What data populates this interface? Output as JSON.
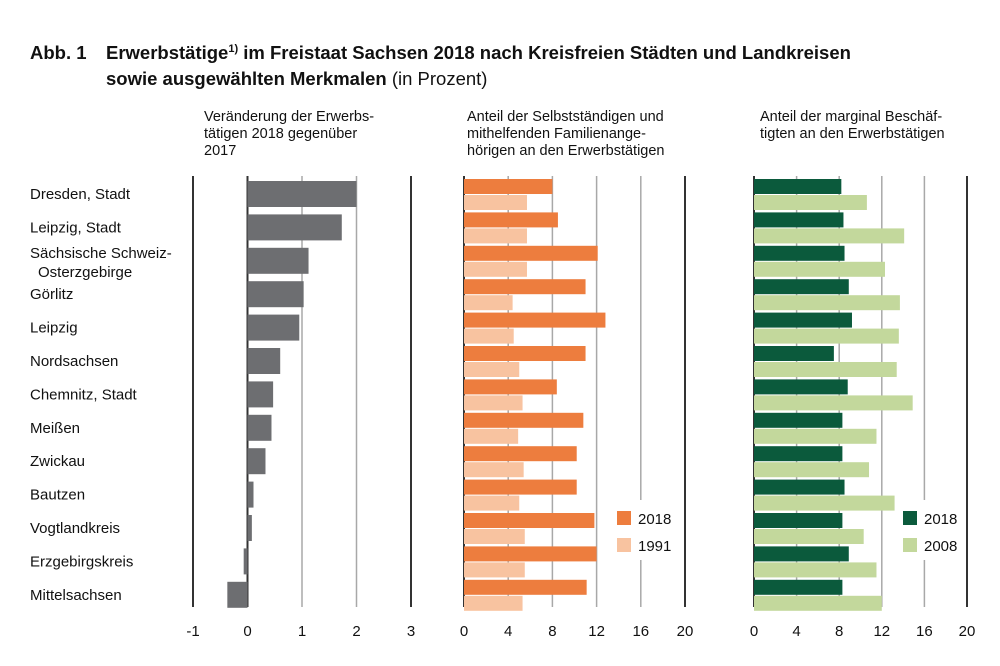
{
  "title": {
    "number": "Abb. 1",
    "main": "Erwerbstätige",
    "footnote_mark": "1)",
    "rest_line1": " im Freistaat Sachsen 2018 nach Kreisfreien Städten und Landkreisen",
    "line2_bold": "sowie ausgewählten Merkmalen",
    "line2_normal": " (in Prozent)"
  },
  "chart_data": [
    {
      "type": "bar",
      "orientation": "horizontal",
      "title_lines": [
        "Veränderung der Erwerbs-",
        "tätigen 2018 gegenüber",
        "2017"
      ],
      "categories": [
        "Dresden, Stadt",
        "Leipzig, Stadt",
        "Sächsische Schweiz-Osterzgebirge",
        "Görlitz",
        "Leipzig",
        "Nordsachsen",
        "Chemnitz, Stadt",
        "Meißen",
        "Zwickau",
        "Bautzen",
        "Vogtlandkreis",
        "Erzgebirgskreis",
        "Mittelsachsen"
      ],
      "series": [
        {
          "values": [
            2.0,
            1.73,
            1.12,
            1.03,
            0.95,
            0.6,
            0.47,
            0.44,
            0.33,
            0.11,
            0.08,
            -0.07,
            -0.37
          ],
          "color": "#6d6e71"
        }
      ],
      "xlim": [
        -1,
        3
      ],
      "ticks": [
        "-1",
        "0",
        "1",
        "2",
        "3"
      ],
      "grid": true
    },
    {
      "type": "bar",
      "orientation": "horizontal",
      "title_lines": [
        "Anteil der Selbstständigen und",
        "mithelfenden Familienange-",
        "hörigen an den Erwerbstätigen"
      ],
      "categories": [
        "Dresden, Stadt",
        "Leipzig, Stadt",
        "Sächsische Schweiz-Osterzgebirge",
        "Görlitz",
        "Leipzig",
        "Nordsachsen",
        "Chemnitz, Stadt",
        "Meißen",
        "Zwickau",
        "Bautzen",
        "Vogtlandkreis",
        "Erzgebirgskreis",
        "Mittelsachsen"
      ],
      "series": [
        {
          "name": "2018",
          "values": [
            8.0,
            8.5,
            12.1,
            11.0,
            12.8,
            11.0,
            8.4,
            10.8,
            10.2,
            10.2,
            11.8,
            12.0,
            11.1
          ],
          "color": "#ed7d3e"
        },
        {
          "name": "1991",
          "values": [
            5.7,
            5.7,
            5.7,
            4.4,
            4.5,
            5.0,
            5.3,
            4.9,
            5.4,
            5.0,
            5.5,
            5.5,
            5.3
          ],
          "color": "#f8c3a0"
        }
      ],
      "xlim": [
        0,
        20
      ],
      "ticks": [
        "0",
        "4",
        "8",
        "12",
        "16",
        "20"
      ],
      "legend": "bottom-right",
      "grid": true
    },
    {
      "type": "bar",
      "orientation": "horizontal",
      "title_lines": [
        "Anteil der marginal Beschäf-",
        "tigten an den Erwerbstätigen"
      ],
      "categories": [
        "Dresden, Stadt",
        "Leipzig, Stadt",
        "Sächsische Schweiz-Osterzgebirge",
        "Görlitz",
        "Leipzig",
        "Nordsachsen",
        "Chemnitz, Stadt",
        "Meißen",
        "Zwickau",
        "Bautzen",
        "Vogtlandkreis",
        "Erzgebirgskreis",
        "Mittelsachsen"
      ],
      "series": [
        {
          "name": "2018",
          "values": [
            8.2,
            8.4,
            8.5,
            8.9,
            9.2,
            7.5,
            8.8,
            8.3,
            8.3,
            8.5,
            8.3,
            8.9,
            8.3
          ],
          "color": "#0b5a3c"
        },
        {
          "name": "2008",
          "values": [
            10.6,
            14.1,
            12.3,
            13.7,
            13.6,
            13.4,
            14.9,
            11.5,
            10.8,
            13.2,
            10.3,
            11.5,
            12.0
          ],
          "color": "#c3d89c"
        }
      ],
      "xlim": [
        0,
        20
      ],
      "ticks": [
        "0",
        "4",
        "8",
        "12",
        "16",
        "20"
      ],
      "legend": "bottom-right",
      "grid": true
    }
  ],
  "row_labels": [
    [
      "Dresden, Stadt"
    ],
    [
      "Leipzig, Stadt"
    ],
    [
      "Sächsische Schweiz-",
      "Osterzgebirge"
    ],
    [
      "Görlitz"
    ],
    [
      "Leipzig"
    ],
    [
      "Nordsachsen"
    ],
    [
      "Chemnitz, Stadt"
    ],
    [
      "Meißen"
    ],
    [
      "Zwickau"
    ],
    [
      "Bautzen"
    ],
    [
      "Vogtlandkreis"
    ],
    [
      "Erzgebirgskreis"
    ],
    [
      "Mittelsachsen"
    ]
  ]
}
